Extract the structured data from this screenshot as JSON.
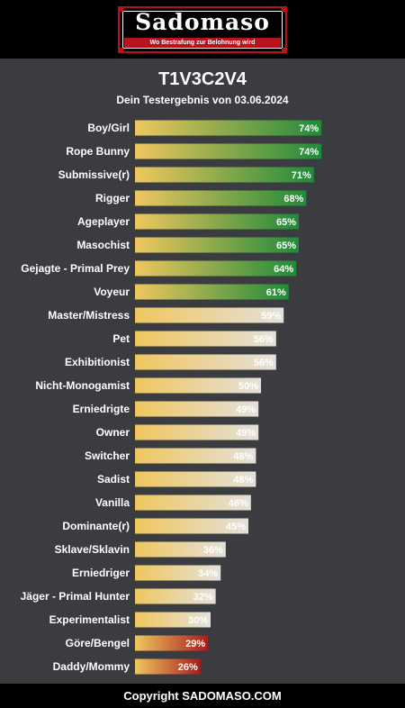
{
  "header": {
    "logo_text": "Sadomaso",
    "logo_tagline": "Wo Bestrafung zur Belohnung wird"
  },
  "title": "T1V3C2V4",
  "subtitle": "Dein Testergebnis von 03.06.2024",
  "footer": "Copyright SADOMASO.COM",
  "colors": {
    "background": "#3a3c40",
    "bar_start": "#f0c75e",
    "green_end": "#1f8a3a",
    "neutral_end": "#e4e1dc",
    "red_end": "#a81c1c"
  },
  "chart_data": {
    "type": "bar",
    "orientation": "horizontal",
    "xlim": [
      0,
      100
    ],
    "categories": [
      "Boy/Girl",
      "Rope Bunny",
      "Submissive(r)",
      "Rigger",
      "Ageplayer",
      "Masochist",
      "Gejagte - Primal Prey",
      "Voyeur",
      "Master/Mistress",
      "Pet",
      "Exhibitionist",
      "Nicht-Monogamist",
      "Erniedrigte",
      "Owner",
      "Switcher",
      "Sadist",
      "Vanilla",
      "Dominante(r)",
      "Sklave/Sklavin",
      "Erniedriger",
      "Jäger - Primal Hunter",
      "Experimentalist",
      "Göre/Bengel",
      "Daddy/Mommy"
    ],
    "values": [
      74,
      74,
      71,
      68,
      65,
      65,
      64,
      61,
      59,
      56,
      56,
      50,
      49,
      49,
      48,
      48,
      46,
      45,
      36,
      34,
      32,
      30,
      29,
      26
    ],
    "labels": [
      "74%",
      "74%",
      "71%",
      "68%",
      "65%",
      "65%",
      "64%",
      "61%",
      "59%",
      "56%",
      "56%",
      "50%",
      "49%",
      "49%",
      "48%",
      "48%",
      "46%",
      "45%",
      "36%",
      "34%",
      "32%",
      "30%",
      "29%",
      "26%"
    ],
    "color_groups": [
      "green",
      "green",
      "green",
      "green",
      "green",
      "green",
      "green",
      "green",
      "neutral",
      "neutral",
      "neutral",
      "neutral",
      "neutral",
      "neutral",
      "neutral",
      "neutral",
      "neutral",
      "neutral",
      "neutral",
      "neutral",
      "neutral",
      "neutral",
      "red",
      "red"
    ]
  }
}
